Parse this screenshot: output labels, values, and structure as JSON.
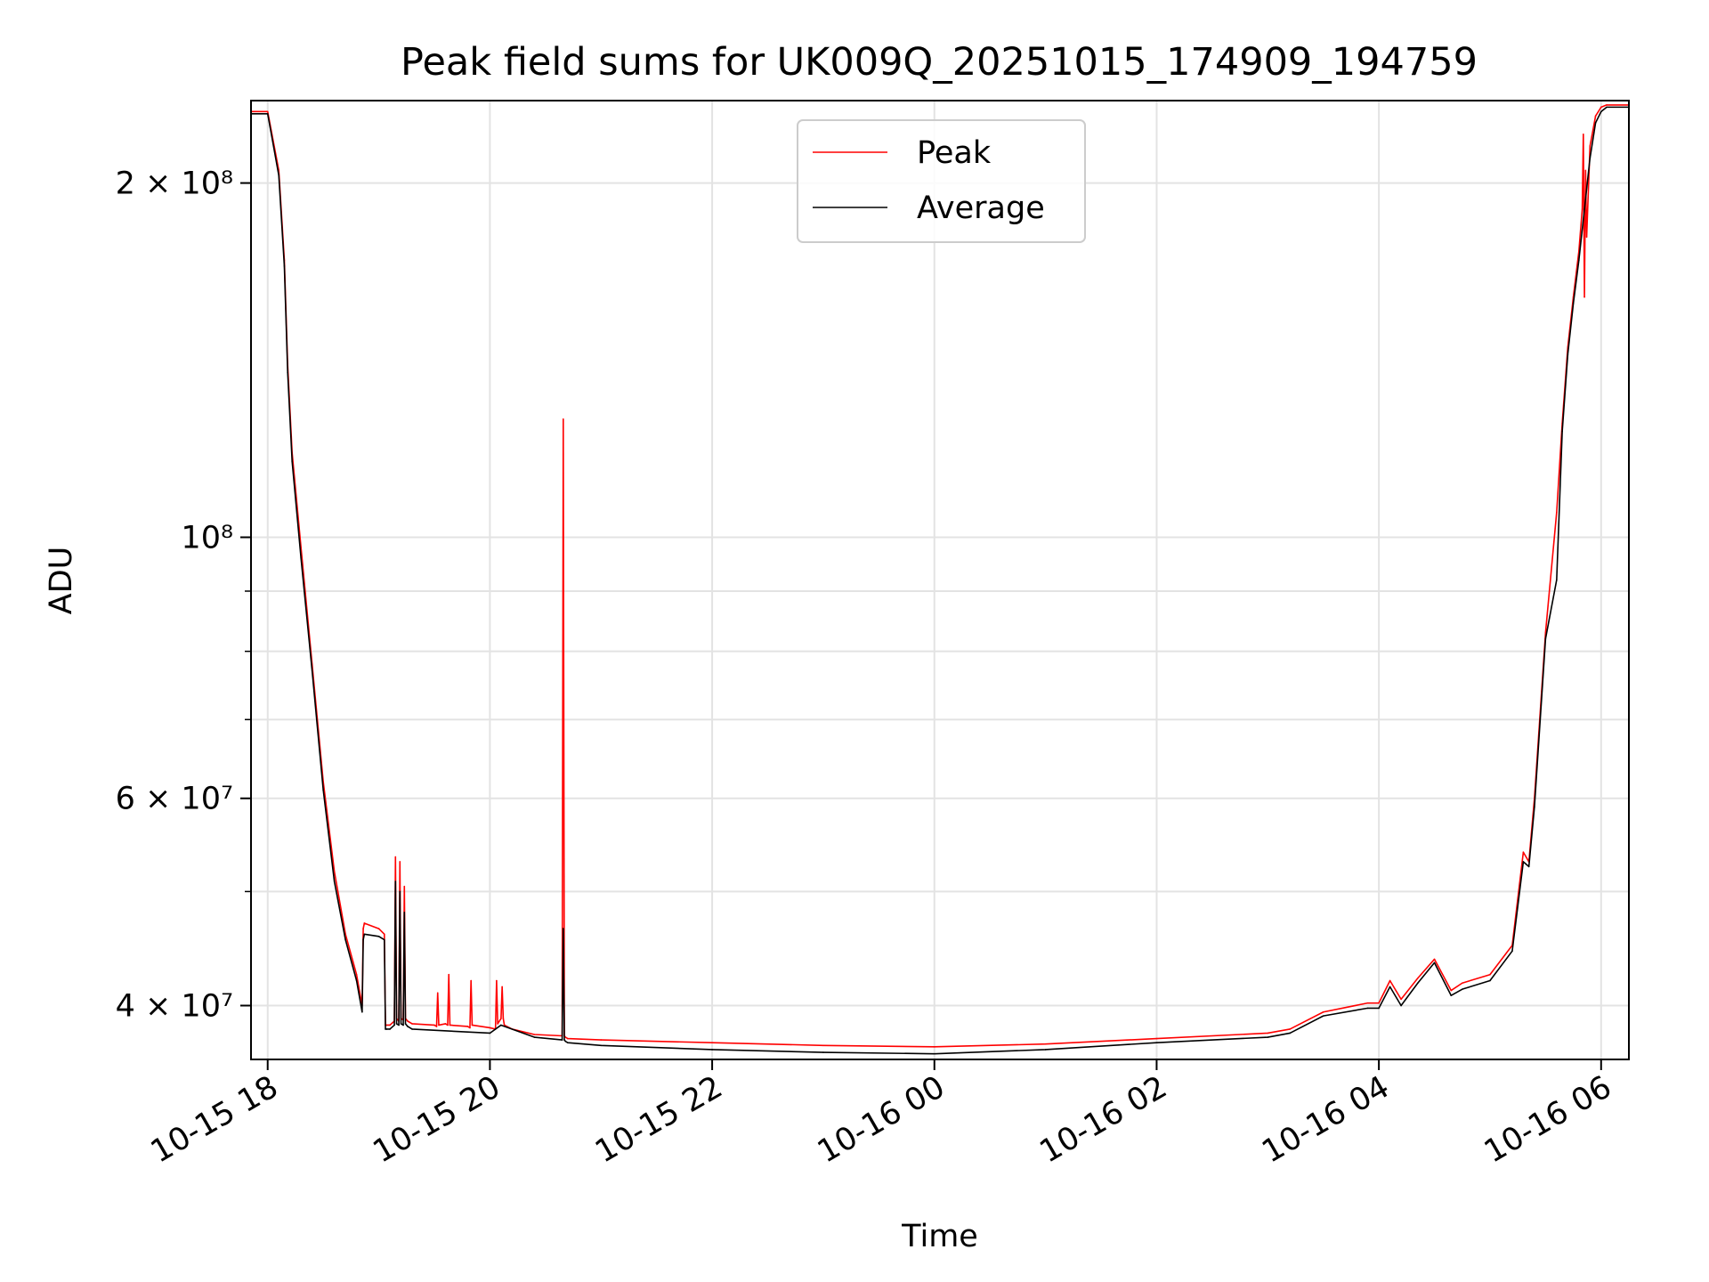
{
  "chart_data": {
    "type": "line",
    "title": "Peak field sums for UK009Q_20251015_174909_194759",
    "xlabel": "Time",
    "ylabel": "ADU",
    "yscale": "log",
    "ylim": [
      36000000,
      235000000
    ],
    "xlim_hours": [
      17.85,
      30.25
    ],
    "grid": true,
    "legend_position": "upper-center",
    "x_ticks": [
      {
        "label": "10-15 18",
        "hour": 18
      },
      {
        "label": "10-15 20",
        "hour": 20
      },
      {
        "label": "10-15 22",
        "hour": 22
      },
      {
        "label": "10-16 00",
        "hour": 24
      },
      {
        "label": "10-16 02",
        "hour": 26
      },
      {
        "label": "10-16 04",
        "hour": 28
      },
      {
        "label": "10-16 06",
        "hour": 30
      }
    ],
    "y_major_ticks": [
      {
        "label": "4 × 10⁷",
        "value": 40000000
      },
      {
        "label": "6 × 10⁷",
        "value": 60000000
      },
      {
        "label": "10⁸",
        "value": 100000000
      },
      {
        "label": "2 × 10⁸",
        "value": 200000000
      }
    ],
    "y_minor_ticks": [
      50000000,
      70000000,
      80000000,
      90000000
    ],
    "series": [
      {
        "name": "Peak",
        "color": "#ff0000",
        "x_hours": [
          17.85,
          18.0,
          18.1,
          18.15,
          18.18,
          18.22,
          18.3,
          18.4,
          18.5,
          18.6,
          18.7,
          18.8,
          18.85,
          18.86,
          18.87,
          19.0,
          19.05,
          19.06,
          19.07,
          19.1,
          19.14,
          19.15,
          19.16,
          19.18,
          19.19,
          19.2,
          19.22,
          19.23,
          19.24,
          19.26,
          19.3,
          19.5,
          19.52,
          19.53,
          19.54,
          19.6,
          19.62,
          19.63,
          19.64,
          19.8,
          19.82,
          19.83,
          19.84,
          20.0,
          20.05,
          20.06,
          20.07,
          20.1,
          20.11,
          20.12,
          20.13,
          20.2,
          20.4,
          20.65,
          20.66,
          20.67,
          20.68,
          20.7,
          21.0,
          22.0,
          23.0,
          24.0,
          25.0,
          26.0,
          27.0,
          27.2,
          27.5,
          27.9,
          28.0,
          28.1,
          28.2,
          28.35,
          28.5,
          28.65,
          28.75,
          29.0,
          29.2,
          29.3,
          29.35,
          29.4,
          29.5,
          29.6,
          29.65,
          29.7,
          29.75,
          29.8,
          29.83,
          29.84,
          29.85,
          29.86,
          29.87,
          29.9,
          29.95,
          30.0,
          30.05,
          30.25
        ],
        "values": [
          230000000,
          230000000,
          205000000,
          172000000,
          140000000,
          118000000,
          98000000,
          78000000,
          62000000,
          52000000,
          46000000,
          42500000,
          40000000,
          46500000,
          47000000,
          46500000,
          46000000,
          38500000,
          38500000,
          38500000,
          38800000,
          53500000,
          39000000,
          38800000,
          53000000,
          39000000,
          38900000,
          50500000,
          39000000,
          38800000,
          38600000,
          38500000,
          38400000,
          41000000,
          38500000,
          38600000,
          38500000,
          42500000,
          38500000,
          38400000,
          38300000,
          42000000,
          38500000,
          38300000,
          38200000,
          42000000,
          38600000,
          39000000,
          41500000,
          39000000,
          38500000,
          38200000,
          37800000,
          37700000,
          126000000,
          37700000,
          37600000,
          37500000,
          37400000,
          37200000,
          37000000,
          36900000,
          37100000,
          37500000,
          37900000,
          38200000,
          39500000,
          40200000,
          40200000,
          42000000,
          40500000,
          42200000,
          43800000,
          41200000,
          41800000,
          42500000,
          45000000,
          54000000,
          53000000,
          60000000,
          83000000,
          105000000,
          125000000,
          145000000,
          160000000,
          175000000,
          190000000,
          220000000,
          160000000,
          205000000,
          180000000,
          215000000,
          228000000,
          232000000,
          233000000,
          233000000
        ]
      },
      {
        "name": "Average",
        "color": "#000000",
        "x_hours": [
          17.85,
          18.0,
          18.1,
          18.15,
          18.18,
          18.22,
          18.3,
          18.4,
          18.5,
          18.6,
          18.7,
          18.8,
          18.85,
          18.86,
          18.87,
          19.0,
          19.05,
          19.06,
          19.07,
          19.1,
          19.14,
          19.15,
          19.16,
          19.18,
          19.19,
          19.2,
          19.22,
          19.23,
          19.24,
          19.26,
          19.3,
          20.0,
          20.1,
          20.4,
          20.65,
          20.66,
          20.67,
          20.68,
          20.7,
          21.0,
          22.0,
          23.0,
          24.0,
          25.0,
          26.0,
          27.0,
          27.2,
          27.5,
          27.9,
          28.0,
          28.1,
          28.2,
          28.35,
          28.5,
          28.65,
          28.75,
          29.0,
          29.2,
          29.3,
          29.35,
          29.4,
          29.5,
          29.6,
          29.65,
          29.7,
          29.75,
          29.8,
          29.85,
          29.9,
          29.95,
          30.0,
          30.05,
          30.25
        ],
        "values": [
          229000000,
          229000000,
          203000000,
          170000000,
          138000000,
          116000000,
          96000000,
          77000000,
          61000000,
          51000000,
          45500000,
          42000000,
          39500000,
          45500000,
          46000000,
          45800000,
          45500000,
          38200000,
          38200000,
          38200000,
          38500000,
          51000000,
          38600000,
          38500000,
          50000000,
          38600000,
          38500000,
          48000000,
          38600000,
          38400000,
          38200000,
          37900000,
          38500000,
          37600000,
          37400000,
          46500000,
          37400000,
          37300000,
          37200000,
          37000000,
          36700000,
          36500000,
          36400000,
          36700000,
          37200000,
          37600000,
          37900000,
          39200000,
          39800000,
          39800000,
          41500000,
          40000000,
          41800000,
          43500000,
          40800000,
          41300000,
          42000000,
          44500000,
          53000000,
          52500000,
          59000000,
          82000000,
          92000000,
          123000000,
          143000000,
          158000000,
          172000000,
          190000000,
          210000000,
          225000000,
          230000000,
          232000000,
          232000000
        ]
      }
    ]
  }
}
